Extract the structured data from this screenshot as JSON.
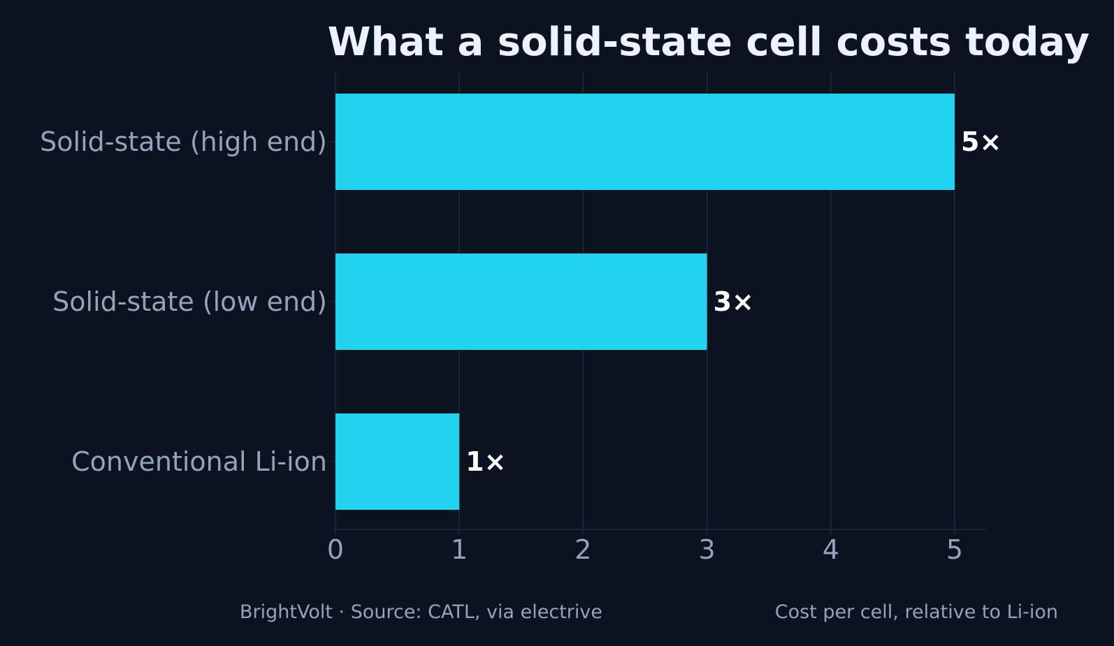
{
  "colors": {
    "background": "#0b1320",
    "bar": "#22d3ee",
    "grid": "#1e2a3e",
    "title": "#eef2ff",
    "muted_text": "#94a3b8",
    "value_text": "#ffffff"
  },
  "chart_data": {
    "type": "bar",
    "orientation": "horizontal",
    "title": "What a solid-state cell costs today",
    "categories": [
      "Solid-state (high end)",
      "Solid-state (low end)",
      "Conventional Li-ion"
    ],
    "values": [
      5,
      3,
      1
    ],
    "value_labels": [
      "5×",
      "3×",
      "1×"
    ],
    "xlim": [
      0,
      5.25
    ],
    "xticks": [
      0,
      1,
      2,
      3,
      4,
      5
    ],
    "xtick_labels": [
      "0",
      "1",
      "2",
      "3",
      "4",
      "5"
    ],
    "grid": "vertical",
    "xlabel": "",
    "ylabel": ""
  },
  "footer": {
    "source": "BrightVolt  ·  Source: CATL, via electrive",
    "note": "Cost per cell, relative to Li-ion"
  }
}
